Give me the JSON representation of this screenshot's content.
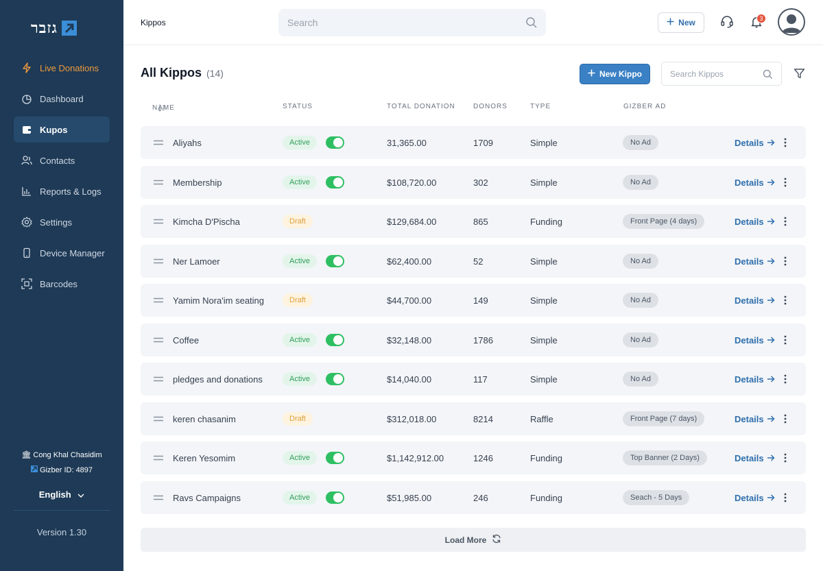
{
  "brand": {
    "logo_text": "גזבר",
    "accent": "#3b8ed8",
    "sidebar_bg": "#1e3a56"
  },
  "sidebar": {
    "items": [
      {
        "label": "Live Donations",
        "icon": "lightning-icon"
      },
      {
        "label": "Dashboard",
        "icon": "pie-chart-icon"
      },
      {
        "label": "Kupos",
        "icon": "wallet-icon"
      },
      {
        "label": "Contacts",
        "icon": "users-icon"
      },
      {
        "label": "Reports & Logs",
        "icon": "bar-chart-icon"
      },
      {
        "label": "Settings",
        "icon": "gear-icon"
      },
      {
        "label": "Device Manager",
        "icon": "phone-icon"
      },
      {
        "label": "Barcodes",
        "icon": "barcode-scan-icon"
      }
    ],
    "org_name": "Cong Khal Chasidim",
    "gizber_id": "Gizber ID: 4897",
    "language": "English",
    "version": "Version 1.30"
  },
  "topbar": {
    "breadcrumb": "Kippos",
    "search_placeholder": "Search",
    "new_label": "New",
    "notification_count": "3"
  },
  "main": {
    "title": "All Kippos",
    "count": "(14)",
    "new_kippo_label": "New Kippo",
    "search_placeholder": "Search Kippos",
    "columns": [
      "NAME",
      "STATUS",
      "TOTAL DONATION",
      "DONORS",
      "TYPE",
      "GIZBER AD"
    ],
    "details_label": "Details",
    "load_more_label": "Load More",
    "rows": [
      {
        "name": "Aliyahs",
        "status": "Active",
        "total": "31,365.00",
        "donors": "1709",
        "type": "Simple",
        "ad": "No Ad"
      },
      {
        "name": "Membership",
        "status": "Active",
        "total": "$108,720.00",
        "donors": "302",
        "type": "Simple",
        "ad": "No Ad"
      },
      {
        "name": "Kimcha D'Pischa",
        "status": "Draft",
        "total": "$129,684.00",
        "donors": "865",
        "type": "Funding",
        "ad": "Front Page (4 days)"
      },
      {
        "name": "Ner Lamoer",
        "status": "Active",
        "total": "$62,400.00",
        "donors": "52",
        "type": "Simple",
        "ad": "No Ad"
      },
      {
        "name": "Yamim Nora'im seating",
        "status": "Draft",
        "total": "$44,700.00",
        "donors": "149",
        "type": "Simple",
        "ad": "No Ad"
      },
      {
        "name": "Coffee",
        "status": "Active",
        "total": "$32,148.00",
        "donors": "1786",
        "type": "Simple",
        "ad": "No Ad"
      },
      {
        "name": "pledges and donations",
        "status": "Active",
        "total": "$14,040.00",
        "donors": "117",
        "type": "Simple",
        "ad": "No Ad"
      },
      {
        "name": "keren chasanim",
        "status": "Draft",
        "total": "$312,018.00",
        "donors": "8214",
        "type": "Raffle",
        "ad": "Front Page (7 days)"
      },
      {
        "name": "Keren Yesomim",
        "status": "Active",
        "total": "$1,142,912.00",
        "donors": "1246",
        "type": "Funding",
        "ad": "Top Banner (2 Days)"
      },
      {
        "name": "Ravs Campaigns",
        "status": "Active",
        "total": "$51,985.00",
        "donors": "246",
        "type": "Funding",
        "ad": "Seach - 5 Days"
      }
    ]
  }
}
